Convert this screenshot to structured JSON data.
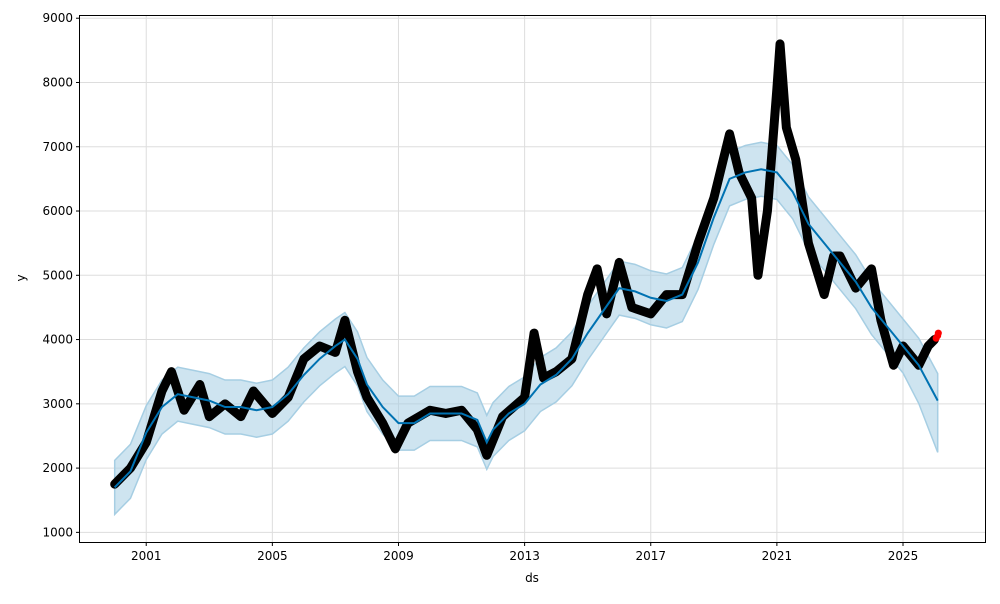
{
  "chart_data": {
    "type": "line",
    "title": "",
    "xlabel": "ds",
    "ylabel": "y",
    "xlim": [
      1998.9,
      2027.6
    ],
    "ylim": [
      850,
      9050
    ],
    "x_ticks": [
      2001,
      2005,
      2009,
      2013,
      2017,
      2021,
      2025
    ],
    "y_ticks": [
      1000,
      2000,
      3000,
      4000,
      5000,
      6000,
      7000,
      8000,
      9000
    ],
    "grid": true,
    "colors": {
      "forecast": "#0072B2",
      "interval": "#a6cee3",
      "observed": "#000000",
      "recent": "#ff0000"
    },
    "series": [
      {
        "role": "yhat",
        "x": [
          2000.0,
          2000.5,
          2001.0,
          2001.5,
          2002.0,
          2002.5,
          2003.0,
          2003.5,
          2004.0,
          2004.5,
          2005.0,
          2005.5,
          2006.0,
          2006.5,
          2007.0,
          2007.3,
          2007.7,
          2008.0,
          2008.5,
          2009.0,
          2009.5,
          2010.0,
          2010.5,
          2011.0,
          2011.5,
          2011.8,
          2012.0,
          2012.5,
          2013.0,
          2013.5,
          2014.0,
          2014.5,
          2015.0,
          2015.5,
          2016.0,
          2016.5,
          2017.0,
          2017.5,
          2018.0,
          2018.5,
          2019.0,
          2019.5,
          2020.0,
          2020.5,
          2021.0,
          2021.5,
          2022.0,
          2022.5,
          2023.0,
          2023.5,
          2024.0,
          2024.5,
          2025.0,
          2025.5,
          2026.1
        ],
        "y": [
          1700,
          1950,
          2550,
          2950,
          3150,
          3100,
          3050,
          2950,
          2950,
          2900,
          2950,
          3150,
          3450,
          3700,
          3900,
          4000,
          3700,
          3300,
          2950,
          2700,
          2700,
          2850,
          2850,
          2850,
          2750,
          2400,
          2600,
          2850,
          3000,
          3300,
          3450,
          3700,
          4100,
          4450,
          4800,
          4750,
          4650,
          4600,
          4700,
          5200,
          5900,
          6500,
          6600,
          6650,
          6600,
          6300,
          5800,
          5500,
          5200,
          4900,
          4500,
          4200,
          3900,
          3600,
          3050
        ],
        "interval_halfwidth": 420
      },
      {
        "role": "observed",
        "x": [
          2000.0,
          2000.5,
          2001.0,
          2001.5,
          2001.8,
          2002.2,
          2002.7,
          2003.0,
          2003.5,
          2004.0,
          2004.4,
          2005.0,
          2005.5,
          2006.0,
          2006.5,
          2007.0,
          2007.3,
          2007.7,
          2008.0,
          2008.5,
          2008.9,
          2009.3,
          2010.0,
          2010.5,
          2011.0,
          2011.5,
          2011.8,
          2012.3,
          2013.0,
          2013.3,
          2013.6,
          2014.0,
          2014.5,
          2015.0,
          2015.3,
          2015.6,
          2016.0,
          2016.4,
          2017.0,
          2017.5,
          2018.0,
          2018.5,
          2019.0,
          2019.5,
          2019.8,
          2020.2,
          2020.4,
          2020.7,
          2021.0,
          2021.1,
          2021.3,
          2021.6,
          2022.0,
          2022.5,
          2022.8,
          2023.0,
          2023.5,
          2024.0,
          2024.3,
          2024.7,
          2025.0,
          2025.5,
          2025.8,
          2026.0
        ],
        "y": [
          1750,
          2000,
          2400,
          3200,
          3500,
          2900,
          3300,
          2800,
          3000,
          2800,
          3200,
          2850,
          3100,
          3700,
          3900,
          3800,
          4300,
          3500,
          3100,
          2700,
          2300,
          2700,
          2900,
          2850,
          2900,
          2600,
          2200,
          2800,
          3100,
          4100,
          3400,
          3500,
          3700,
          4700,
          5100,
          4400,
          5200,
          4500,
          4400,
          4700,
          4700,
          5500,
          6200,
          7200,
          6600,
          6200,
          5000,
          6000,
          7900,
          8600,
          7300,
          6800,
          5500,
          4700,
          5300,
          5300,
          4800,
          5100,
          4300,
          3600,
          3900,
          3600,
          3900,
          4000
        ]
      },
      {
        "role": "recent",
        "x": [
          2026.05,
          2026.1,
          2026.12
        ],
        "y": [
          4020,
          4060,
          4100
        ]
      }
    ]
  }
}
